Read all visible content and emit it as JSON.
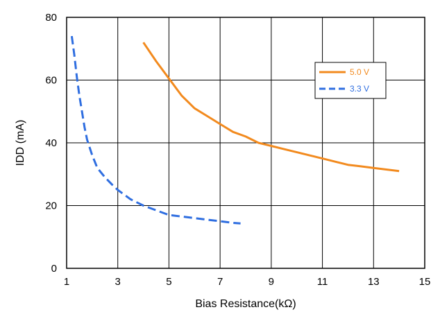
{
  "chart_data": {
    "type": "line",
    "title": "",
    "xlabel": "Bias Resistance(kΩ)",
    "ylabel": "IDD (mA)",
    "xlim": [
      1,
      15
    ],
    "ylim": [
      0,
      80
    ],
    "x_ticks": [
      1,
      3,
      5,
      7,
      9,
      11,
      13,
      15
    ],
    "y_ticks": [
      0,
      20,
      40,
      60,
      80
    ],
    "grid": true,
    "legend_position": "upper-right",
    "series": [
      {
        "name": "5.0 V",
        "color": "#f28a1e",
        "dash": "solid",
        "x": [
          4.0,
          4.5,
          5.0,
          5.5,
          6.0,
          6.5,
          7.0,
          7.5,
          8.0,
          8.5,
          9.0,
          9.5,
          10.0,
          10.5,
          11.0,
          11.5,
          12.0,
          12.5,
          13.0,
          13.5,
          14.0
        ],
        "y": [
          72,
          66,
          60.5,
          55,
          51,
          48.5,
          46,
          43.5,
          42,
          40,
          39,
          38,
          37,
          36,
          35,
          34,
          33,
          32.5,
          32,
          31.5,
          31
        ]
      },
      {
        "name": "3.3 V",
        "color": "#2f6ee0",
        "dash": "dashed",
        "x": [
          1.2,
          1.3,
          1.4,
          1.5,
          1.6,
          1.7,
          1.8,
          2.0,
          2.2,
          2.5,
          2.8,
          3.0,
          3.5,
          4.0,
          4.5,
          5.0,
          5.5,
          6.0,
          6.5,
          7.0,
          7.5,
          7.8
        ],
        "y": [
          74,
          68,
          61,
          55,
          50,
          45,
          41,
          36,
          32,
          29,
          26.5,
          25,
          22,
          20,
          18.5,
          17,
          16.5,
          16,
          15.5,
          15,
          14.5,
          14.3
        ]
      }
    ]
  }
}
